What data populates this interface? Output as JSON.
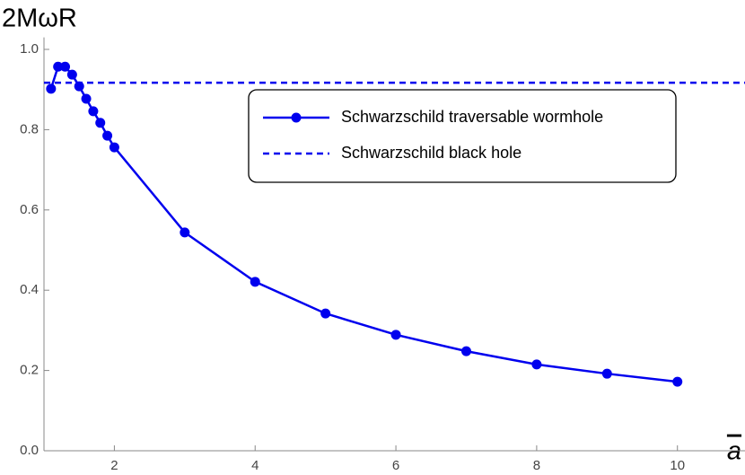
{
  "chart_data": {
    "type": "line",
    "ylabel": "2MωR",
    "xlabel": "a",
    "x": [
      1.1,
      1.2,
      1.3,
      1.4,
      1.5,
      1.6,
      1.7,
      1.8,
      1.9,
      2.0,
      3,
      4,
      5,
      6,
      7,
      8,
      9,
      10
    ],
    "series": [
      {
        "name": "Schwarzschild traversable wormhole",
        "color": "#0000ee",
        "values": [
          0.902,
          0.957,
          0.957,
          0.937,
          0.908,
          0.877,
          0.846,
          0.817,
          0.785,
          0.756,
          0.544,
          0.421,
          0.342,
          0.289,
          0.248,
          0.215,
          0.192,
          0.172
        ]
      }
    ],
    "reference_line": {
      "name": "Schwarzschild black hole",
      "color": "#0000ee",
      "value": 0.917,
      "dashed": true
    },
    "xlim": [
      1,
      10.96
    ],
    "ylim": [
      0,
      1.03
    ],
    "xticks": [
      2,
      4,
      6,
      8,
      10
    ],
    "yticks": [
      {
        "value": 0,
        "label": "0.0"
      },
      0.2,
      0.4,
      0.6,
      0.8,
      {
        "value": 1,
        "label": "1.0"
      }
    ],
    "grid": false
  }
}
